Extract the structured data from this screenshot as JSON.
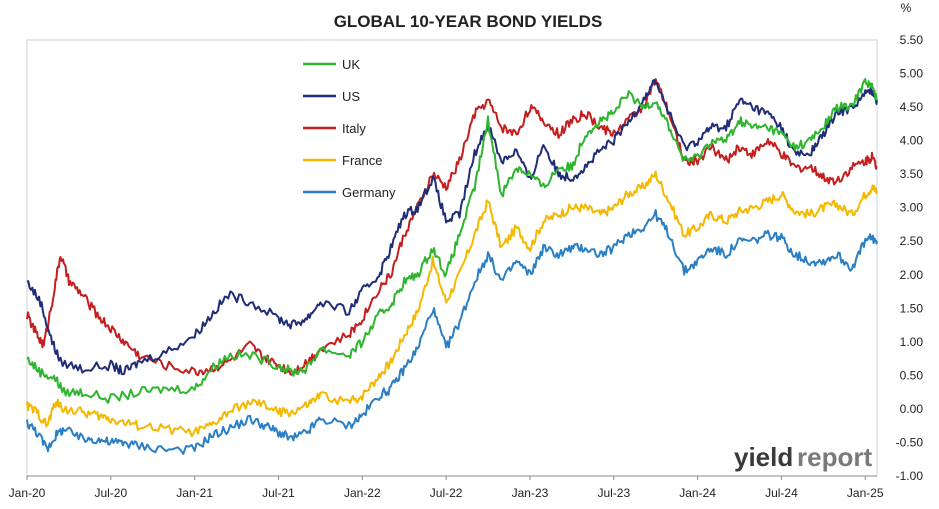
{
  "chart_data": {
    "type": "line",
    "title": "GLOBAL 10-YEAR BOND YIELDS",
    "y_unit": "%",
    "ylim": [
      -1.0,
      5.5
    ],
    "y_ticks": [
      "5.50",
      "5.00",
      "4.50",
      "4.00",
      "3.50",
      "3.00",
      "2.50",
      "2.00",
      "1.50",
      "1.00",
      "0.50",
      "0.00",
      "-0.50",
      "-1.00"
    ],
    "y_tick_values": [
      5.5,
      5.0,
      4.5,
      4.0,
      3.5,
      3.0,
      2.5,
      2.0,
      1.5,
      1.0,
      0.5,
      0.0,
      -0.5,
      -1.0
    ],
    "x_ticks": [
      "Jan-20",
      "Jul-20",
      "Jan-21",
      "Jul-21",
      "Jan-22",
      "Jul-22",
      "Jan-23",
      "Jul-23",
      "Jan-24",
      "Jul-24",
      "Jan-25"
    ],
    "x_tick_values": [
      2020.0,
      2020.5,
      2021.0,
      2021.5,
      2022.0,
      2022.5,
      2023.0,
      2023.5,
      2024.0,
      2024.5,
      2025.0
    ],
    "xlim": [
      2020.0,
      2025.07
    ],
    "grid": false,
    "legend_position": "top-left-inside",
    "series": [
      {
        "name": "UK",
        "color": "#2db52d",
        "points": [
          [
            2020.0,
            0.75
          ],
          [
            2020.08,
            0.55
          ],
          [
            2020.17,
            0.45
          ],
          [
            2020.22,
            0.25
          ],
          [
            2020.33,
            0.25
          ],
          [
            2020.5,
            0.15
          ],
          [
            2020.67,
            0.25
          ],
          [
            2020.83,
            0.3
          ],
          [
            2021.0,
            0.3
          ],
          [
            2021.1,
            0.6
          ],
          [
            2021.2,
            0.8
          ],
          [
            2021.33,
            0.8
          ],
          [
            2021.5,
            0.65
          ],
          [
            2021.58,
            0.55
          ],
          [
            2021.67,
            0.6
          ],
          [
            2021.75,
            0.9
          ],
          [
            2021.92,
            0.8
          ],
          [
            2022.0,
            1.0
          ],
          [
            2022.1,
            1.4
          ],
          [
            2022.17,
            1.55
          ],
          [
            2022.25,
            1.9
          ],
          [
            2022.33,
            2.0
          ],
          [
            2022.42,
            2.4
          ],
          [
            2022.5,
            2.0
          ],
          [
            2022.58,
            2.6
          ],
          [
            2022.67,
            3.3
          ],
          [
            2022.75,
            4.3
          ],
          [
            2022.83,
            3.2
          ],
          [
            2022.92,
            3.6
          ],
          [
            2023.0,
            3.5
          ],
          [
            2023.08,
            3.3
          ],
          [
            2023.17,
            3.6
          ],
          [
            2023.25,
            3.6
          ],
          [
            2023.33,
            4.1
          ],
          [
            2023.42,
            4.3
          ],
          [
            2023.5,
            4.4
          ],
          [
            2023.58,
            4.7
          ],
          [
            2023.67,
            4.5
          ],
          [
            2023.75,
            4.6
          ],
          [
            2023.83,
            4.2
          ],
          [
            2023.92,
            3.7
          ],
          [
            2024.0,
            3.75
          ],
          [
            2024.08,
            4.0
          ],
          [
            2024.17,
            4.0
          ],
          [
            2024.25,
            4.3
          ],
          [
            2024.33,
            4.2
          ],
          [
            2024.42,
            4.2
          ],
          [
            2024.5,
            4.1
          ],
          [
            2024.58,
            3.9
          ],
          [
            2024.67,
            4.0
          ],
          [
            2024.75,
            4.2
          ],
          [
            2024.83,
            4.5
          ],
          [
            2024.92,
            4.5
          ],
          [
            2025.0,
            4.9
          ],
          [
            2025.04,
            4.8
          ],
          [
            2025.07,
            4.6
          ]
        ]
      },
      {
        "name": "US",
        "color": "#1f2d78",
        "points": [
          [
            2020.0,
            1.9
          ],
          [
            2020.08,
            1.6
          ],
          [
            2020.15,
            1.0
          ],
          [
            2020.2,
            0.7
          ],
          [
            2020.33,
            0.6
          ],
          [
            2020.5,
            0.65
          ],
          [
            2020.58,
            0.55
          ],
          [
            2020.67,
            0.7
          ],
          [
            2020.83,
            0.85
          ],
          [
            2021.0,
            1.1
          ],
          [
            2021.1,
            1.4
          ],
          [
            2021.2,
            1.7
          ],
          [
            2021.33,
            1.6
          ],
          [
            2021.5,
            1.35
          ],
          [
            2021.58,
            1.25
          ],
          [
            2021.67,
            1.35
          ],
          [
            2021.75,
            1.6
          ],
          [
            2021.92,
            1.45
          ],
          [
            2022.0,
            1.75
          ],
          [
            2022.1,
            2.0
          ],
          [
            2022.17,
            2.4
          ],
          [
            2022.25,
            2.9
          ],
          [
            2022.33,
            3.0
          ],
          [
            2022.42,
            3.45
          ],
          [
            2022.5,
            2.8
          ],
          [
            2022.58,
            2.9
          ],
          [
            2022.67,
            3.8
          ],
          [
            2022.75,
            4.25
          ],
          [
            2022.83,
            3.7
          ],
          [
            2022.92,
            3.85
          ],
          [
            2023.0,
            3.4
          ],
          [
            2023.08,
            3.95
          ],
          [
            2023.17,
            3.5
          ],
          [
            2023.25,
            3.45
          ],
          [
            2023.33,
            3.6
          ],
          [
            2023.42,
            3.85
          ],
          [
            2023.5,
            4.0
          ],
          [
            2023.58,
            4.25
          ],
          [
            2023.67,
            4.6
          ],
          [
            2023.75,
            4.9
          ],
          [
            2023.83,
            4.4
          ],
          [
            2023.92,
            3.9
          ],
          [
            2024.0,
            4.0
          ],
          [
            2024.08,
            4.2
          ],
          [
            2024.17,
            4.2
          ],
          [
            2024.25,
            4.6
          ],
          [
            2024.33,
            4.5
          ],
          [
            2024.42,
            4.4
          ],
          [
            2024.5,
            4.2
          ],
          [
            2024.58,
            3.8
          ],
          [
            2024.67,
            3.8
          ],
          [
            2024.75,
            4.1
          ],
          [
            2024.83,
            4.4
          ],
          [
            2024.92,
            4.5
          ],
          [
            2025.0,
            4.7
          ],
          [
            2025.04,
            4.75
          ],
          [
            2025.07,
            4.6
          ]
        ]
      },
      {
        "name": "Italy",
        "color": "#c41e1e",
        "points": [
          [
            2020.0,
            1.4
          ],
          [
            2020.06,
            1.1
          ],
          [
            2020.1,
            0.95
          ],
          [
            2020.15,
            1.6
          ],
          [
            2020.2,
            2.3
          ],
          [
            2020.25,
            1.9
          ],
          [
            2020.33,
            1.7
          ],
          [
            2020.42,
            1.4
          ],
          [
            2020.5,
            1.2
          ],
          [
            2020.58,
            1.0
          ],
          [
            2020.67,
            0.8
          ],
          [
            2020.83,
            0.65
          ],
          [
            2021.0,
            0.55
          ],
          [
            2021.1,
            0.6
          ],
          [
            2021.2,
            0.7
          ],
          [
            2021.33,
            0.95
          ],
          [
            2021.42,
            0.75
          ],
          [
            2021.5,
            0.65
          ],
          [
            2021.58,
            0.55
          ],
          [
            2021.67,
            0.7
          ],
          [
            2021.75,
            0.9
          ],
          [
            2021.92,
            1.1
          ],
          [
            2022.0,
            1.35
          ],
          [
            2022.1,
            1.8
          ],
          [
            2022.17,
            2.0
          ],
          [
            2022.25,
            2.6
          ],
          [
            2022.33,
            3.0
          ],
          [
            2022.42,
            3.5
          ],
          [
            2022.5,
            3.3
          ],
          [
            2022.58,
            3.7
          ],
          [
            2022.67,
            4.4
          ],
          [
            2022.75,
            4.6
          ],
          [
            2022.83,
            4.2
          ],
          [
            2022.92,
            4.1
          ],
          [
            2023.0,
            4.5
          ],
          [
            2023.08,
            4.3
          ],
          [
            2023.17,
            4.1
          ],
          [
            2023.25,
            4.3
          ],
          [
            2023.33,
            4.4
          ],
          [
            2023.42,
            4.2
          ],
          [
            2023.5,
            4.1
          ],
          [
            2023.58,
            4.3
          ],
          [
            2023.67,
            4.5
          ],
          [
            2023.75,
            4.9
          ],
          [
            2023.83,
            4.4
          ],
          [
            2023.92,
            3.7
          ],
          [
            2024.0,
            3.7
          ],
          [
            2024.08,
            3.9
          ],
          [
            2024.17,
            3.7
          ],
          [
            2024.25,
            3.9
          ],
          [
            2024.33,
            3.8
          ],
          [
            2024.42,
            4.0
          ],
          [
            2024.5,
            3.8
          ],
          [
            2024.58,
            3.6
          ],
          [
            2024.67,
            3.6
          ],
          [
            2024.75,
            3.45
          ],
          [
            2024.83,
            3.4
          ],
          [
            2024.92,
            3.6
          ],
          [
            2025.0,
            3.7
          ],
          [
            2025.04,
            3.75
          ],
          [
            2025.07,
            3.6
          ]
        ]
      },
      {
        "name": "France",
        "color": "#f5b800",
        "points": [
          [
            2020.0,
            0.05
          ],
          [
            2020.06,
            -0.05
          ],
          [
            2020.12,
            -0.25
          ],
          [
            2020.17,
            0.1
          ],
          [
            2020.22,
            0.0
          ],
          [
            2020.33,
            -0.05
          ],
          [
            2020.42,
            -0.1
          ],
          [
            2020.5,
            -0.15
          ],
          [
            2020.58,
            -0.2
          ],
          [
            2020.67,
            -0.25
          ],
          [
            2020.83,
            -0.3
          ],
          [
            2021.0,
            -0.35
          ],
          [
            2021.1,
            -0.25
          ],
          [
            2021.2,
            -0.05
          ],
          [
            2021.33,
            0.1
          ],
          [
            2021.42,
            0.05
          ],
          [
            2021.5,
            -0.05
          ],
          [
            2021.58,
            -0.05
          ],
          [
            2021.67,
            0.05
          ],
          [
            2021.75,
            0.2
          ],
          [
            2021.92,
            0.1
          ],
          [
            2022.0,
            0.2
          ],
          [
            2022.1,
            0.5
          ],
          [
            2022.17,
            0.7
          ],
          [
            2022.25,
            1.1
          ],
          [
            2022.33,
            1.45
          ],
          [
            2022.42,
            2.2
          ],
          [
            2022.5,
            1.6
          ],
          [
            2022.58,
            2.0
          ],
          [
            2022.67,
            2.6
          ],
          [
            2022.75,
            3.1
          ],
          [
            2022.83,
            2.4
          ],
          [
            2022.92,
            2.7
          ],
          [
            2023.0,
            2.4
          ],
          [
            2023.08,
            2.8
          ],
          [
            2023.17,
            2.9
          ],
          [
            2023.25,
            3.0
          ],
          [
            2023.33,
            3.0
          ],
          [
            2023.42,
            2.9
          ],
          [
            2023.5,
            3.0
          ],
          [
            2023.58,
            3.2
          ],
          [
            2023.67,
            3.3
          ],
          [
            2023.75,
            3.5
          ],
          [
            2023.83,
            3.1
          ],
          [
            2023.92,
            2.6
          ],
          [
            2024.0,
            2.7
          ],
          [
            2024.08,
            2.9
          ],
          [
            2024.17,
            2.8
          ],
          [
            2024.25,
            2.95
          ],
          [
            2024.33,
            3.0
          ],
          [
            2024.42,
            3.1
          ],
          [
            2024.5,
            3.2
          ],
          [
            2024.58,
            2.95
          ],
          [
            2024.67,
            2.9
          ],
          [
            2024.75,
            3.0
          ],
          [
            2024.83,
            3.05
          ],
          [
            2024.92,
            2.9
          ],
          [
            2025.0,
            3.2
          ],
          [
            2025.04,
            3.3
          ],
          [
            2025.07,
            3.25
          ]
        ]
      },
      {
        "name": "Germany",
        "color": "#2a7fc4",
        "points": [
          [
            2020.0,
            -0.2
          ],
          [
            2020.06,
            -0.35
          ],
          [
            2020.12,
            -0.6
          ],
          [
            2020.17,
            -0.4
          ],
          [
            2020.22,
            -0.3
          ],
          [
            2020.33,
            -0.45
          ],
          [
            2020.42,
            -0.45
          ],
          [
            2020.5,
            -0.5
          ],
          [
            2020.58,
            -0.5
          ],
          [
            2020.67,
            -0.55
          ],
          [
            2020.83,
            -0.6
          ],
          [
            2021.0,
            -0.6
          ],
          [
            2021.1,
            -0.4
          ],
          [
            2021.2,
            -0.3
          ],
          [
            2021.33,
            -0.15
          ],
          [
            2021.42,
            -0.25
          ],
          [
            2021.5,
            -0.35
          ],
          [
            2021.58,
            -0.45
          ],
          [
            2021.67,
            -0.35
          ],
          [
            2021.75,
            -0.15
          ],
          [
            2021.92,
            -0.25
          ],
          [
            2022.0,
            -0.1
          ],
          [
            2022.1,
            0.2
          ],
          [
            2022.17,
            0.3
          ],
          [
            2022.25,
            0.6
          ],
          [
            2022.33,
            0.9
          ],
          [
            2022.42,
            1.5
          ],
          [
            2022.5,
            0.9
          ],
          [
            2022.58,
            1.3
          ],
          [
            2022.67,
            1.9
          ],
          [
            2022.75,
            2.3
          ],
          [
            2022.83,
            1.9
          ],
          [
            2022.92,
            2.2
          ],
          [
            2023.0,
            2.0
          ],
          [
            2023.08,
            2.4
          ],
          [
            2023.17,
            2.3
          ],
          [
            2023.25,
            2.4
          ],
          [
            2023.33,
            2.4
          ],
          [
            2023.42,
            2.3
          ],
          [
            2023.5,
            2.4
          ],
          [
            2023.58,
            2.6
          ],
          [
            2023.67,
            2.7
          ],
          [
            2023.75,
            2.9
          ],
          [
            2023.83,
            2.6
          ],
          [
            2023.92,
            2.05
          ],
          [
            2024.0,
            2.2
          ],
          [
            2024.08,
            2.4
          ],
          [
            2024.17,
            2.3
          ],
          [
            2024.25,
            2.5
          ],
          [
            2024.33,
            2.5
          ],
          [
            2024.42,
            2.6
          ],
          [
            2024.5,
            2.55
          ],
          [
            2024.58,
            2.3
          ],
          [
            2024.67,
            2.2
          ],
          [
            2024.75,
            2.2
          ],
          [
            2024.83,
            2.3
          ],
          [
            2024.92,
            2.1
          ],
          [
            2025.0,
            2.5
          ],
          [
            2025.04,
            2.55
          ],
          [
            2025.07,
            2.5
          ]
        ]
      }
    ]
  },
  "brand": {
    "part1": "yield",
    "part2": "report"
  }
}
